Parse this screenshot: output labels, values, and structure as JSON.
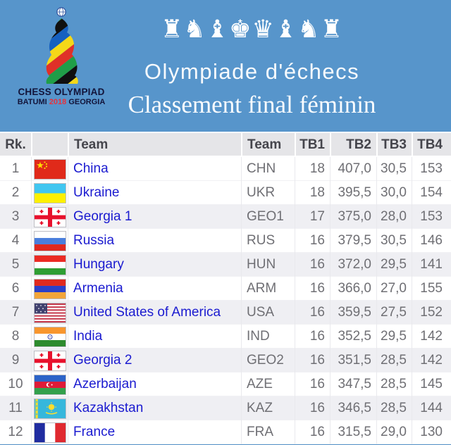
{
  "header": {
    "pieces": "♜♞♝♚♛♝♞♜",
    "title": "Olympiade d'échecs",
    "subtitle": "Classement final féminin",
    "logo": {
      "line1": "CHESS OLYMPIAD",
      "line2_city": "BATUMI",
      "line2_year": "2018",
      "line2_country": "GEORGIA"
    }
  },
  "table": {
    "columns": {
      "rank": "Rk.",
      "team": "Team",
      "code": "Team",
      "tb1": "TB1",
      "tb2": "TB2",
      "tb3": "TB3",
      "tb4": "TB4"
    },
    "rows": [
      {
        "rank": "1",
        "flag": "chn",
        "team": "China",
        "code": "CHN",
        "tb1": "18",
        "tb2": "407,0",
        "tb3": "30,5",
        "tb4": "153"
      },
      {
        "rank": "2",
        "flag": "ukr",
        "team": "Ukraine",
        "code": "UKR",
        "tb1": "18",
        "tb2": "395,5",
        "tb3": "30,0",
        "tb4": "154"
      },
      {
        "rank": "3",
        "flag": "geo",
        "team": "Georgia 1",
        "code": "GEO1",
        "tb1": "17",
        "tb2": "375,0",
        "tb3": "28,0",
        "tb4": "153"
      },
      {
        "rank": "4",
        "flag": "rus",
        "team": "Russia",
        "code": "RUS",
        "tb1": "16",
        "tb2": "379,5",
        "tb3": "30,5",
        "tb4": "146"
      },
      {
        "rank": "5",
        "flag": "hun",
        "team": "Hungary",
        "code": "HUN",
        "tb1": "16",
        "tb2": "372,0",
        "tb3": "29,5",
        "tb4": "141"
      },
      {
        "rank": "6",
        "flag": "arm",
        "team": "Armenia",
        "code": "ARM",
        "tb1": "16",
        "tb2": "366,0",
        "tb3": "27,0",
        "tb4": "155"
      },
      {
        "rank": "7",
        "flag": "usa",
        "team": "United States of America",
        "code": "USA",
        "tb1": "16",
        "tb2": "359,5",
        "tb3": "27,5",
        "tb4": "152"
      },
      {
        "rank": "8",
        "flag": "ind",
        "team": "India",
        "code": "IND",
        "tb1": "16",
        "tb2": "352,5",
        "tb3": "29,5",
        "tb4": "142"
      },
      {
        "rank": "9",
        "flag": "geo",
        "team": "Georgia 2",
        "code": "GEO2",
        "tb1": "16",
        "tb2": "351,5",
        "tb3": "28,5",
        "tb4": "142"
      },
      {
        "rank": "10",
        "flag": "aze",
        "team": "Azerbaijan",
        "code": "AZE",
        "tb1": "16",
        "tb2": "347,5",
        "tb3": "28,5",
        "tb4": "145"
      },
      {
        "rank": "11",
        "flag": "kaz",
        "team": "Kazakhstan",
        "code": "KAZ",
        "tb1": "16",
        "tb2": "346,5",
        "tb3": "28,5",
        "tb4": "144"
      },
      {
        "rank": "12",
        "flag": "fra",
        "team": "France",
        "code": "FRA",
        "tb1": "16",
        "tb2": "315,5",
        "tb3": "29,0",
        "tb4": "130"
      }
    ]
  },
  "colors": {
    "background_blue": "#5795CB",
    "link_blue": "#1B1BD0",
    "header_gray": "#E5E5E8",
    "stripe_gray": "#EFEFF3",
    "text_gray": "#6F6F74",
    "logo_year_red": "#E8323C"
  }
}
